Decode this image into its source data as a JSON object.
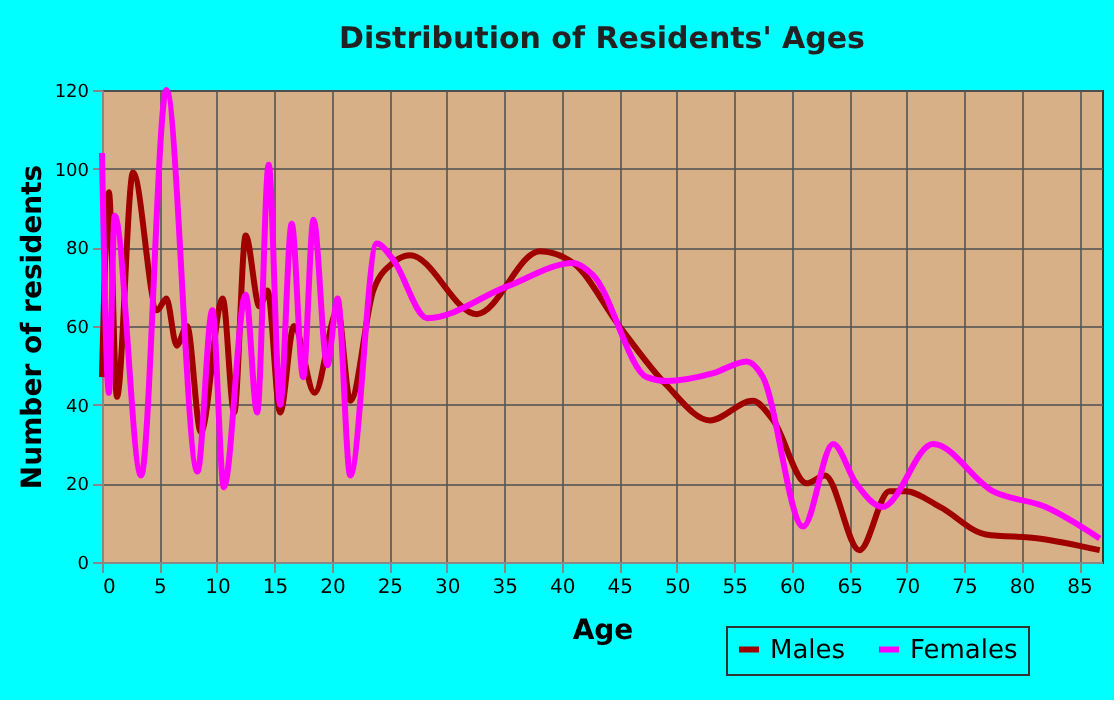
{
  "chart_data": {
    "type": "line",
    "title": "Distribution of Residents' Ages",
    "xlabel": "Age",
    "ylabel": "Number of residents",
    "xlim": [
      0,
      87
    ],
    "xticks": [
      0,
      5,
      10,
      15,
      20,
      25,
      30,
      35,
      40,
      45,
      50,
      55,
      60,
      65,
      70,
      75,
      80,
      85
    ],
    "ylim": [
      0,
      120
    ],
    "yticks": [
      0,
      20,
      40,
      60,
      80,
      100,
      120
    ],
    "grid": true,
    "legend": "bottom right",
    "series": [
      {
        "name": "Males",
        "color": "#a00000",
        "x": [
          0,
          0.6,
          1.3,
          2.7,
          4.8,
          5.6,
          6.5,
          7.4,
          8.6,
          10.5,
          11.5,
          12.5,
          13.7,
          14.4,
          15.5,
          16.7,
          18.5,
          20.5,
          21.6,
          23.6,
          25.3,
          26.8,
          32.6,
          38.1,
          41,
          45,
          49.1,
          52.9,
          56.6,
          58.4,
          61.3,
          62.9,
          65.9,
          68.5,
          69.9,
          72.9,
          76.9,
          81.5,
          86.8
        ],
        "values": [
          47,
          94,
          42,
          99,
          64,
          67,
          55,
          60,
          33,
          67,
          38,
          83,
          65,
          69,
          38,
          60,
          43,
          64,
          41,
          69,
          76,
          78,
          63,
          79,
          76,
          60,
          45,
          36,
          41,
          36,
          20,
          22,
          3,
          18,
          18,
          14,
          7,
          6,
          3
        ]
      },
      {
        "name": "Females",
        "color": "#ff00ff",
        "x": [
          0,
          0.6,
          1.1,
          3.4,
          5.6,
          8.3,
          9.6,
          10.6,
          12.5,
          13.5,
          14.5,
          15.5,
          16.5,
          17.5,
          18.4,
          19.6,
          20.5,
          21.6,
          23.9,
          25.3,
          28.3,
          35.2,
          41,
          42.7,
          47.4,
          49.1,
          53.2,
          56.1,
          57.5,
          61,
          63.6,
          65.6,
          67.9,
          72.3,
          77.5,
          82.1,
          86.8
        ],
        "values": [
          104,
          43,
          88,
          22,
          120,
          23,
          64,
          19,
          68,
          38,
          101,
          40,
          86,
          47,
          87,
          50,
          67,
          22,
          81,
          77,
          62,
          70,
          76,
          73,
          47,
          46,
          48,
          51,
          47,
          9,
          30,
          20,
          14,
          30,
          18,
          14,
          6
        ]
      }
    ]
  }
}
